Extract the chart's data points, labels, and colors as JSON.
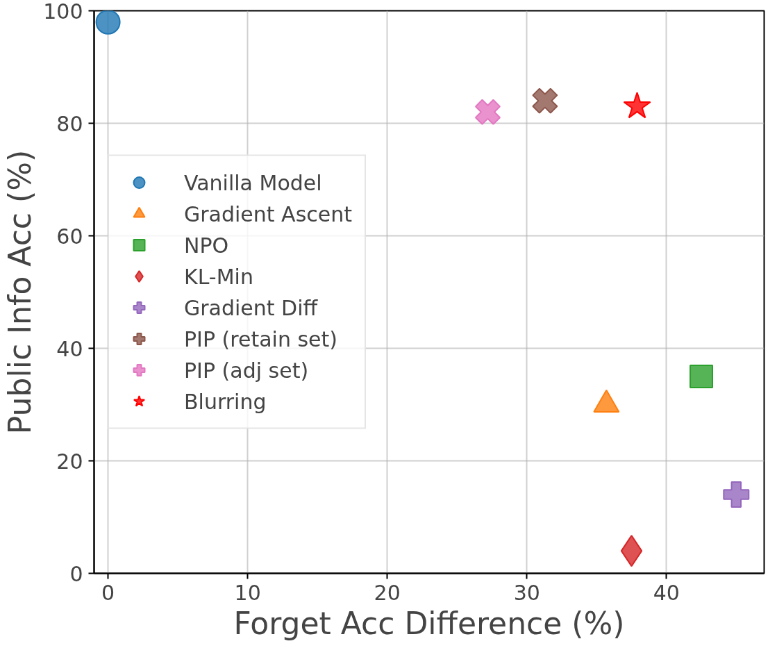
{
  "chart_data": {
    "type": "scatter",
    "xlabel": "Forget Acc Difference (%)",
    "ylabel": "Public Info Acc (%)",
    "xlim": [
      -1,
      47
    ],
    "ylim": [
      0,
      100
    ],
    "xticks": [
      0,
      10,
      20,
      30,
      40
    ],
    "yticks": [
      0,
      20,
      40,
      60,
      80,
      100
    ],
    "grid": true,
    "legend": "left",
    "series": [
      {
        "name": "Vanilla Model",
        "color": "#1f77b4",
        "marker": "circle",
        "x": [
          0
        ],
        "values": [
          98
        ]
      },
      {
        "name": "Gradient Ascent",
        "color": "#ff7f0e",
        "marker": "triangle",
        "x": [
          35.7
        ],
        "values": [
          30
        ]
      },
      {
        "name": "NPO",
        "color": "#2ca02c",
        "marker": "square",
        "x": [
          42.5
        ],
        "values": [
          35
        ]
      },
      {
        "name": "KL-Min",
        "color": "#d62728",
        "marker": "diamond",
        "x": [
          37.5
        ],
        "values": [
          4
        ]
      },
      {
        "name": "Gradient Diff",
        "color": "#9467bd",
        "marker": "cross",
        "x": [
          45
        ],
        "values": [
          14
        ]
      },
      {
        "name": "PIP (retain set)",
        "color": "#8c564b",
        "marker": "x",
        "x": [
          31.3
        ],
        "values": [
          84
        ]
      },
      {
        "name": "PIP (adj set)",
        "color": "#e377c2",
        "marker": "x",
        "x": [
          27.2
        ],
        "values": [
          82
        ]
      },
      {
        "name": "Blurring",
        "color": "#ff0000",
        "marker": "star",
        "x": [
          37.9
        ],
        "values": [
          83
        ]
      }
    ]
  }
}
